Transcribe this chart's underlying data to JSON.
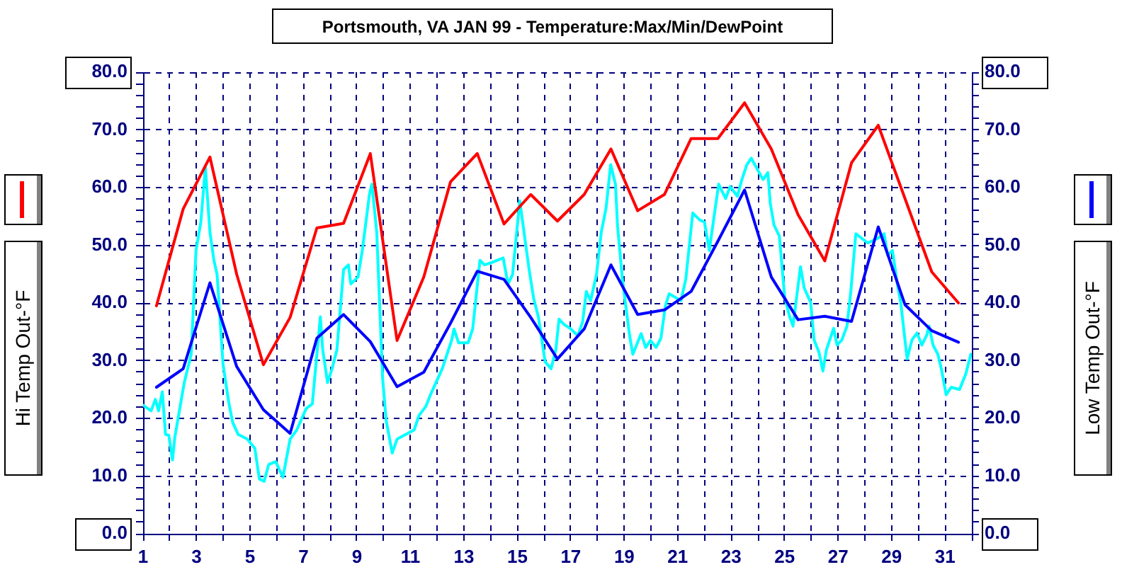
{
  "chart_data": {
    "type": "line",
    "title": "Portsmouth, VA JAN 99 - Temperature:Max/Min/DewPoint",
    "ylabel": "Hi Temp Out-°F",
    "y2label": "Low Temp Out-°F",
    "x": [
      1.5,
      2.5,
      3.5,
      4.5,
      5.5,
      6.5,
      7.5,
      8.5,
      9.5,
      10.5,
      11.5,
      12.5,
      13.5,
      14.5,
      15.5,
      16.5,
      17.5,
      18.5,
      19.5,
      20.5,
      21.5,
      22.5,
      23.5,
      24.5,
      25.5,
      26.5,
      27.5,
      28.5,
      29.5,
      30.5,
      31.5
    ],
    "xlim": [
      1,
      32
    ],
    "xticks": [
      1,
      {
        "value": 2,
        "label": null
      },
      3,
      {
        "value": 4,
        "label": null
      },
      5,
      {
        "value": 6,
        "label": null
      },
      7,
      {
        "value": 8,
        "label": null
      },
      9,
      {
        "value": 10,
        "label": null
      },
      11,
      {
        "value": 12,
        "label": null
      },
      13,
      {
        "value": 14,
        "label": null
      },
      15,
      {
        "value": 16,
        "label": null
      },
      17,
      {
        "value": 18,
        "label": null
      },
      19,
      {
        "value": 20,
        "label": null
      },
      21,
      {
        "value": 22,
        "label": null
      },
      23,
      {
        "value": 24,
        "label": null
      },
      25,
      {
        "value": 26,
        "label": null
      },
      27,
      {
        "value": 28,
        "label": null
      },
      29,
      {
        "value": 30,
        "label": null
      },
      31,
      {
        "value": 32,
        "label": null
      }
    ],
    "ylim": [
      0,
      80
    ],
    "yticks": [
      {
        "value": 0,
        "label": "0.0"
      },
      {
        "value": 2,
        "label": null
      },
      {
        "value": 4,
        "label": null
      },
      {
        "value": 6,
        "label": null
      },
      {
        "value": 8,
        "label": null
      },
      {
        "value": 10,
        "label": "10.0"
      },
      {
        "value": 12,
        "label": null
      },
      {
        "value": 14,
        "label": null
      },
      {
        "value": 16,
        "label": null
      },
      {
        "value": 18,
        "label": null
      },
      {
        "value": 20,
        "label": "20.0"
      },
      {
        "value": 22,
        "label": null
      },
      {
        "value": 24,
        "label": null
      },
      {
        "value": 26,
        "label": null
      },
      {
        "value": 28,
        "label": null
      },
      {
        "value": 30,
        "label": "30.0"
      },
      {
        "value": 32,
        "label": null
      },
      {
        "value": 34,
        "label": null
      },
      {
        "value": 36,
        "label": null
      },
      {
        "value": 38,
        "label": null
      },
      {
        "value": 40,
        "label": "40.0"
      },
      {
        "value": 42,
        "label": null
      },
      {
        "value": 44,
        "label": null
      },
      {
        "value": 46,
        "label": null
      },
      {
        "value": 48,
        "label": null
      },
      {
        "value": 50,
        "label": "50.0"
      },
      {
        "value": 52,
        "label": null
      },
      {
        "value": 54,
        "label": null
      },
      {
        "value": 56,
        "label": null
      },
      {
        "value": 58,
        "label": null
      },
      {
        "value": 60,
        "label": "60.0"
      },
      {
        "value": 62,
        "label": null
      },
      {
        "value": 64,
        "label": null
      },
      {
        "value": 66,
        "label": null
      },
      {
        "value": 68,
        "label": null
      },
      {
        "value": 70,
        "label": "70.0"
      },
      {
        "value": 72,
        "label": null
      },
      {
        "value": 74,
        "label": null
      },
      {
        "value": 76,
        "label": null
      },
      {
        "value": 78,
        "label": null
      },
      {
        "value": 80,
        "label": "80.0"
      }
    ],
    "y2lim": [
      0,
      80
    ],
    "y2ticks": [
      {
        "value": 0,
        "label": "0.0"
      },
      {
        "value": 2,
        "label": null
      },
      {
        "value": 4,
        "label": null
      },
      {
        "value": 6,
        "label": null
      },
      {
        "value": 8,
        "label": null
      },
      {
        "value": 10,
        "label": "10.0"
      },
      {
        "value": 12,
        "label": null
      },
      {
        "value": 14,
        "label": null
      },
      {
        "value": 16,
        "label": null
      },
      {
        "value": 18,
        "label": null
      },
      {
        "value": 20,
        "label": "20.0"
      },
      {
        "value": 22,
        "label": null
      },
      {
        "value": 24,
        "label": null
      },
      {
        "value": 26,
        "label": null
      },
      {
        "value": 28,
        "label": null
      },
      {
        "value": 30,
        "label": "30.0"
      },
      {
        "value": 32,
        "label": null
      },
      {
        "value": 34,
        "label": null
      },
      {
        "value": 36,
        "label": null
      },
      {
        "value": 38,
        "label": null
      },
      {
        "value": 40,
        "label": "40.0"
      },
      {
        "value": 42,
        "label": null
      },
      {
        "value": 44,
        "label": null
      },
      {
        "value": 46,
        "label": null
      },
      {
        "value": 48,
        "label": null
      },
      {
        "value": 50,
        "label": "50.0"
      },
      {
        "value": 52,
        "label": null
      },
      {
        "value": 54,
        "label": null
      },
      {
        "value": 56,
        "label": null
      },
      {
        "value": 58,
        "label": null
      },
      {
        "value": 60,
        "label": "60.0"
      },
      {
        "value": 62,
        "label": null
      },
      {
        "value": 64,
        "label": null
      },
      {
        "value": 66,
        "label": null
      },
      {
        "value": 68,
        "label": null
      },
      {
        "value": 70,
        "label": "70.0"
      },
      {
        "value": 72,
        "label": null
      },
      {
        "value": 74,
        "label": null
      },
      {
        "value": 76,
        "label": null
      },
      {
        "value": 78,
        "label": null
      },
      {
        "value": 80,
        "label": "80.0"
      }
    ],
    "grid": true,
    "series": [
      {
        "color": "#ff0000",
        "values": [
          39.5,
          56.3,
          65.3,
          45.0,
          29.3,
          37.5,
          53.0,
          53.8,
          65.9,
          33.5,
          44.5,
          61.0,
          65.9,
          53.7,
          58.8,
          54.2,
          58.8,
          66.7,
          56.0,
          58.8,
          68.5,
          68.5,
          74.7,
          66.7,
          55.3,
          47.3,
          64.3,
          70.8,
          58.1,
          45.4,
          40.0
        ]
      },
      {
        "color": "#0000ff",
        "axis": "y2",
        "values": [
          25.4,
          28.6,
          43.5,
          29.0,
          21.5,
          17.4,
          33.9,
          38.0,
          33.3,
          25.5,
          28.0,
          36.5,
          45.5,
          44.1,
          37.5,
          30.3,
          35.5,
          46.6,
          38.0,
          38.8,
          42.0,
          50.7,
          59.6,
          44.5,
          37.1,
          37.7,
          36.8,
          53.2,
          39.7,
          35.2,
          33.2
        ]
      },
      {
        "color": "#00ffff",
        "x": [
          1.0,
          1.3,
          1.46,
          1.58,
          1.72,
          1.84,
          1.96,
          2.1,
          2.19,
          2.54,
          2.8,
          2.98,
          3.16,
          3.33,
          3.5,
          3.65,
          3.77,
          3.99,
          4.2,
          4.35,
          4.56,
          4.9,
          5.18,
          5.35,
          5.53,
          5.7,
          5.96,
          6.23,
          6.5,
          6.75,
          7.1,
          7.33,
          7.63,
          7.72,
          7.9,
          8.07,
          8.25,
          8.5,
          8.68,
          8.77,
          9.04,
          9.2,
          9.47,
          9.56,
          9.74,
          9.96,
          10.09,
          10.32,
          10.5,
          11.14,
          11.32,
          11.58,
          11.75,
          12.19,
          12.54,
          12.63,
          12.8,
          13.16,
          13.33,
          13.6,
          13.77,
          14.04,
          14.47,
          14.65,
          14.82,
          15.09,
          15.44,
          15.61,
          15.79,
          16.04,
          16.26,
          16.44,
          16.56,
          16.74,
          17.0,
          17.26,
          17.44,
          17.58,
          17.74,
          17.96,
          18.14,
          18.32,
          18.49,
          18.67,
          18.75,
          18.93,
          19.2,
          19.32,
          19.63,
          19.8,
          19.98,
          20.19,
          20.37,
          20.54,
          20.68,
          21.12,
          21.3,
          21.56,
          21.82,
          22.0,
          22.18,
          22.53,
          22.79,
          22.96,
          23.23,
          23.4,
          23.58,
          23.75,
          24.19,
          24.37,
          24.46,
          24.6,
          24.8,
          25.0,
          25.18,
          25.31,
          25.59,
          25.73,
          25.97,
          26.1,
          26.28,
          26.43,
          26.56,
          26.83,
          26.96,
          27.14,
          27.33,
          27.47,
          27.66,
          28.11,
          28.48,
          28.72,
          28.85,
          29.03,
          29.21,
          29.34,
          29.58,
          29.76,
          29.95,
          30.13,
          30.31,
          30.4,
          30.55,
          30.73,
          30.86,
          31.04,
          31.23,
          31.54,
          31.78,
          31.96
        ],
        "values": [
          22.3,
          21.3,
          23.3,
          21.3,
          24.6,
          17.2,
          17.1,
          12.8,
          16.8,
          26.2,
          31.1,
          49.1,
          54.0,
          63.5,
          52.3,
          47.4,
          44.9,
          29.4,
          22.9,
          19.3,
          17.2,
          16.4,
          14.8,
          9.5,
          9.1,
          12.0,
          12.5,
          9.8,
          16.4,
          18.0,
          21.7,
          22.5,
          37.6,
          31.9,
          26.2,
          28.6,
          31.9,
          45.8,
          46.6,
          43.3,
          44.5,
          49.1,
          58.9,
          60.6,
          52.3,
          27.0,
          19.7,
          14.0,
          16.4,
          18.0,
          20.5,
          22.1,
          24.1,
          28.6,
          33.5,
          35.5,
          33.1,
          33.1,
          35.5,
          47.4,
          46.6,
          47.0,
          47.8,
          43.3,
          44.9,
          57.7,
          45.8,
          40.8,
          37.5,
          29.8,
          28.6,
          31.9,
          37.2,
          36.3,
          35.5,
          34.3,
          36.7,
          42.0,
          40.4,
          44.9,
          52.3,
          56.5,
          64.0,
          60.6,
          53.2,
          44.1,
          34.3,
          31.1,
          34.7,
          32.3,
          33.5,
          32.3,
          33.9,
          39.6,
          41.6,
          40.4,
          44.1,
          55.6,
          54.4,
          54.0,
          49.1,
          60.6,
          58.1,
          60.2,
          58.5,
          61.4,
          63.9,
          65.1,
          61.4,
          62.6,
          57.3,
          53.5,
          51.6,
          41.0,
          37.7,
          36.0,
          46.3,
          42.6,
          40.1,
          33.6,
          31.5,
          28.2,
          31.9,
          35.6,
          32.7,
          33.6,
          36.0,
          41.8,
          52.0,
          50.4,
          51.2,
          52.0,
          48.3,
          49.1,
          43.4,
          40.1,
          30.3,
          33.6,
          34.8,
          32.7,
          34.4,
          36.0,
          32.7,
          31.1,
          28.6,
          24.1,
          25.4,
          25.0,
          27.8,
          31.1
        ]
      }
    ]
  }
}
